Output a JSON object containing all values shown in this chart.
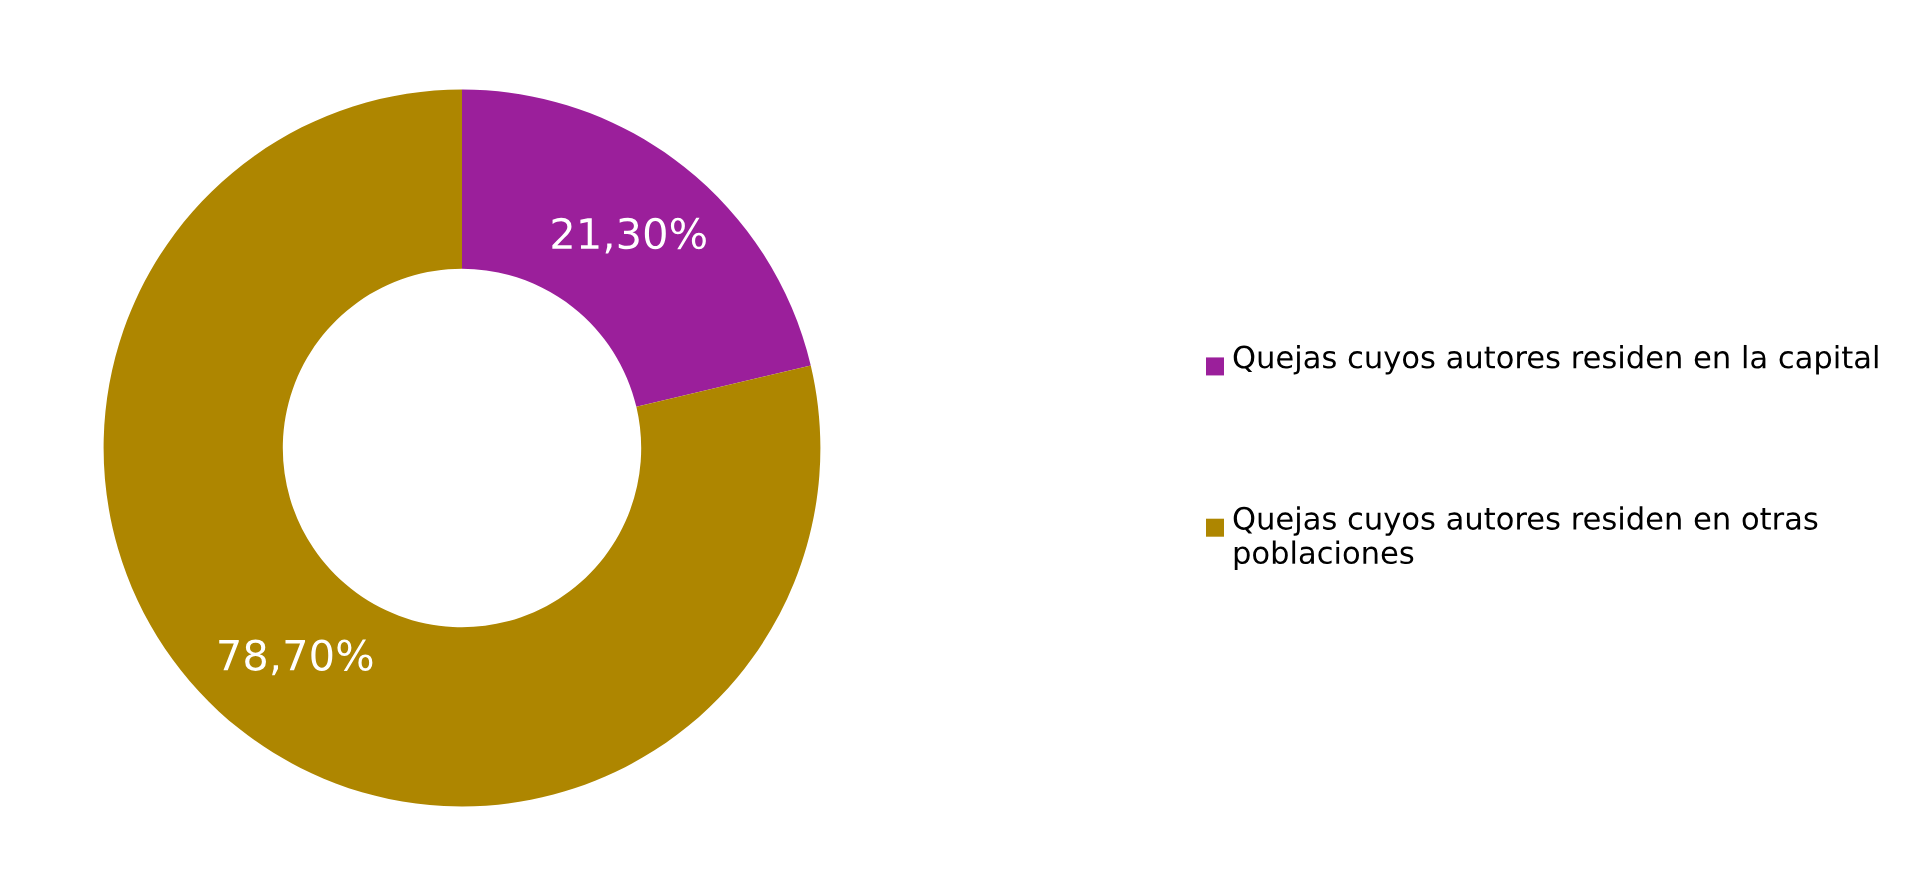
{
  "chart_data": {
    "type": "donut",
    "categories": [
      "Quejas cuyos autores residen en la capital",
      "Quejas cuyos autores residen en otras poblaciones"
    ],
    "values": [
      21.3,
      78.7
    ],
    "colors": [
      "#9b1f9b",
      "#ae8600"
    ],
    "value_labels": [
      "21,30%",
      "78,70%"
    ],
    "legend": "right"
  }
}
